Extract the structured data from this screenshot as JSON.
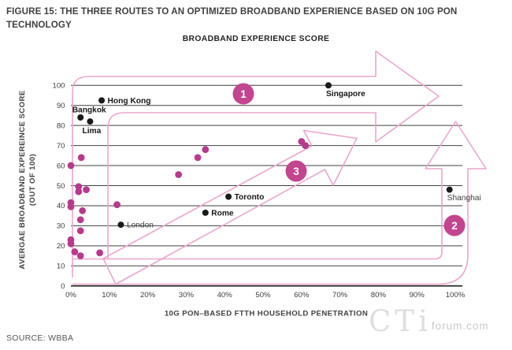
{
  "page": {
    "caption": "FIGURE 15: THE THREE ROUTES TO AN OPTIMIZED BROADBAND EXPERIENCE BASED ON 10G PON TECHNOLOGY",
    "source": "SOURCE: WBBA",
    "watermark_main": "CTi",
    "watermark_sub": "forum.com"
  },
  "chart_data": {
    "type": "scatter",
    "title": "BROADBAND EXPERIENCE SCORE",
    "xlabel": "10G PON–BASED FTTH HOUSEHOLD PENETRATION",
    "ylabel_line1": "AVERGAE BROADBAND EXPEREINCE SCORE",
    "ylabel_line2": "(OUT OF 100)",
    "xlim": [
      0,
      100
    ],
    "ylim": [
      0,
      100
    ],
    "grid": "horizontal-only",
    "legend": "none",
    "x_tick_labels": [
      "0%",
      "10%",
      "20%",
      "30%",
      "40%",
      "50%",
      "60%",
      "70%",
      "80%",
      "90%",
      "100%"
    ],
    "y_tick_labels": [
      "0",
      "10",
      "20",
      "30",
      "40",
      "50",
      "60",
      "70",
      "80",
      "90",
      "100"
    ],
    "labeled_points": [
      {
        "name": "Hong Kong",
        "pen": 8,
        "score": 92.5,
        "label_pos": "right",
        "emphasis": "bold"
      },
      {
        "name": "Bangkok",
        "pen": 2.5,
        "score": 84,
        "label_pos": "above",
        "emphasis": "bold"
      },
      {
        "name": "Lima",
        "pen": 5,
        "score": 82,
        "label_pos": "below",
        "emphasis": "bold"
      },
      {
        "name": "Singapore",
        "pen": 67,
        "score": 100,
        "label_pos": "below-right",
        "emphasis": "bold"
      },
      {
        "name": "Toronto",
        "pen": 41,
        "score": 44.5,
        "label_pos": "right",
        "emphasis": "bold"
      },
      {
        "name": "Rome",
        "pen": 35,
        "score": 36.5,
        "label_pos": "right",
        "emphasis": "bold"
      },
      {
        "name": "London",
        "pen": 13,
        "score": 30.5,
        "label_pos": "right",
        "emphasis": "regular"
      },
      {
        "name": "Shanghai",
        "pen": 98.5,
        "score": 48,
        "label_pos": "below-right",
        "emphasis": "regular"
      }
    ],
    "unlabeled_points_pink": [
      [
        60,
        72
      ],
      [
        61,
        70
      ],
      [
        35,
        68
      ],
      [
        33,
        64
      ],
      [
        2.7,
        64
      ],
      [
        0,
        60
      ],
      [
        28,
        55.5
      ],
      [
        2,
        49.5
      ],
      [
        4,
        48
      ],
      [
        2,
        47
      ],
      [
        0,
        41.5
      ],
      [
        0,
        39.5
      ],
      [
        12,
        40.5
      ],
      [
        3,
        37.5
      ],
      [
        2.5,
        33
      ],
      [
        2.5,
        27.5
      ],
      [
        0,
        23
      ],
      [
        0,
        21
      ],
      [
        1,
        17
      ],
      [
        2.5,
        15
      ],
      [
        7.5,
        16.5
      ]
    ],
    "routes": [
      {
        "label": "1"
      },
      {
        "label": "2"
      },
      {
        "label": "3"
      }
    ],
    "colors": {
      "point_magenta": "#b73a8c",
      "badge_magenta": "#c2458f",
      "arrow_pink": "#eaa6ce",
      "grid_gray": "#404040",
      "ink_black": "#1a1a1a"
    }
  }
}
